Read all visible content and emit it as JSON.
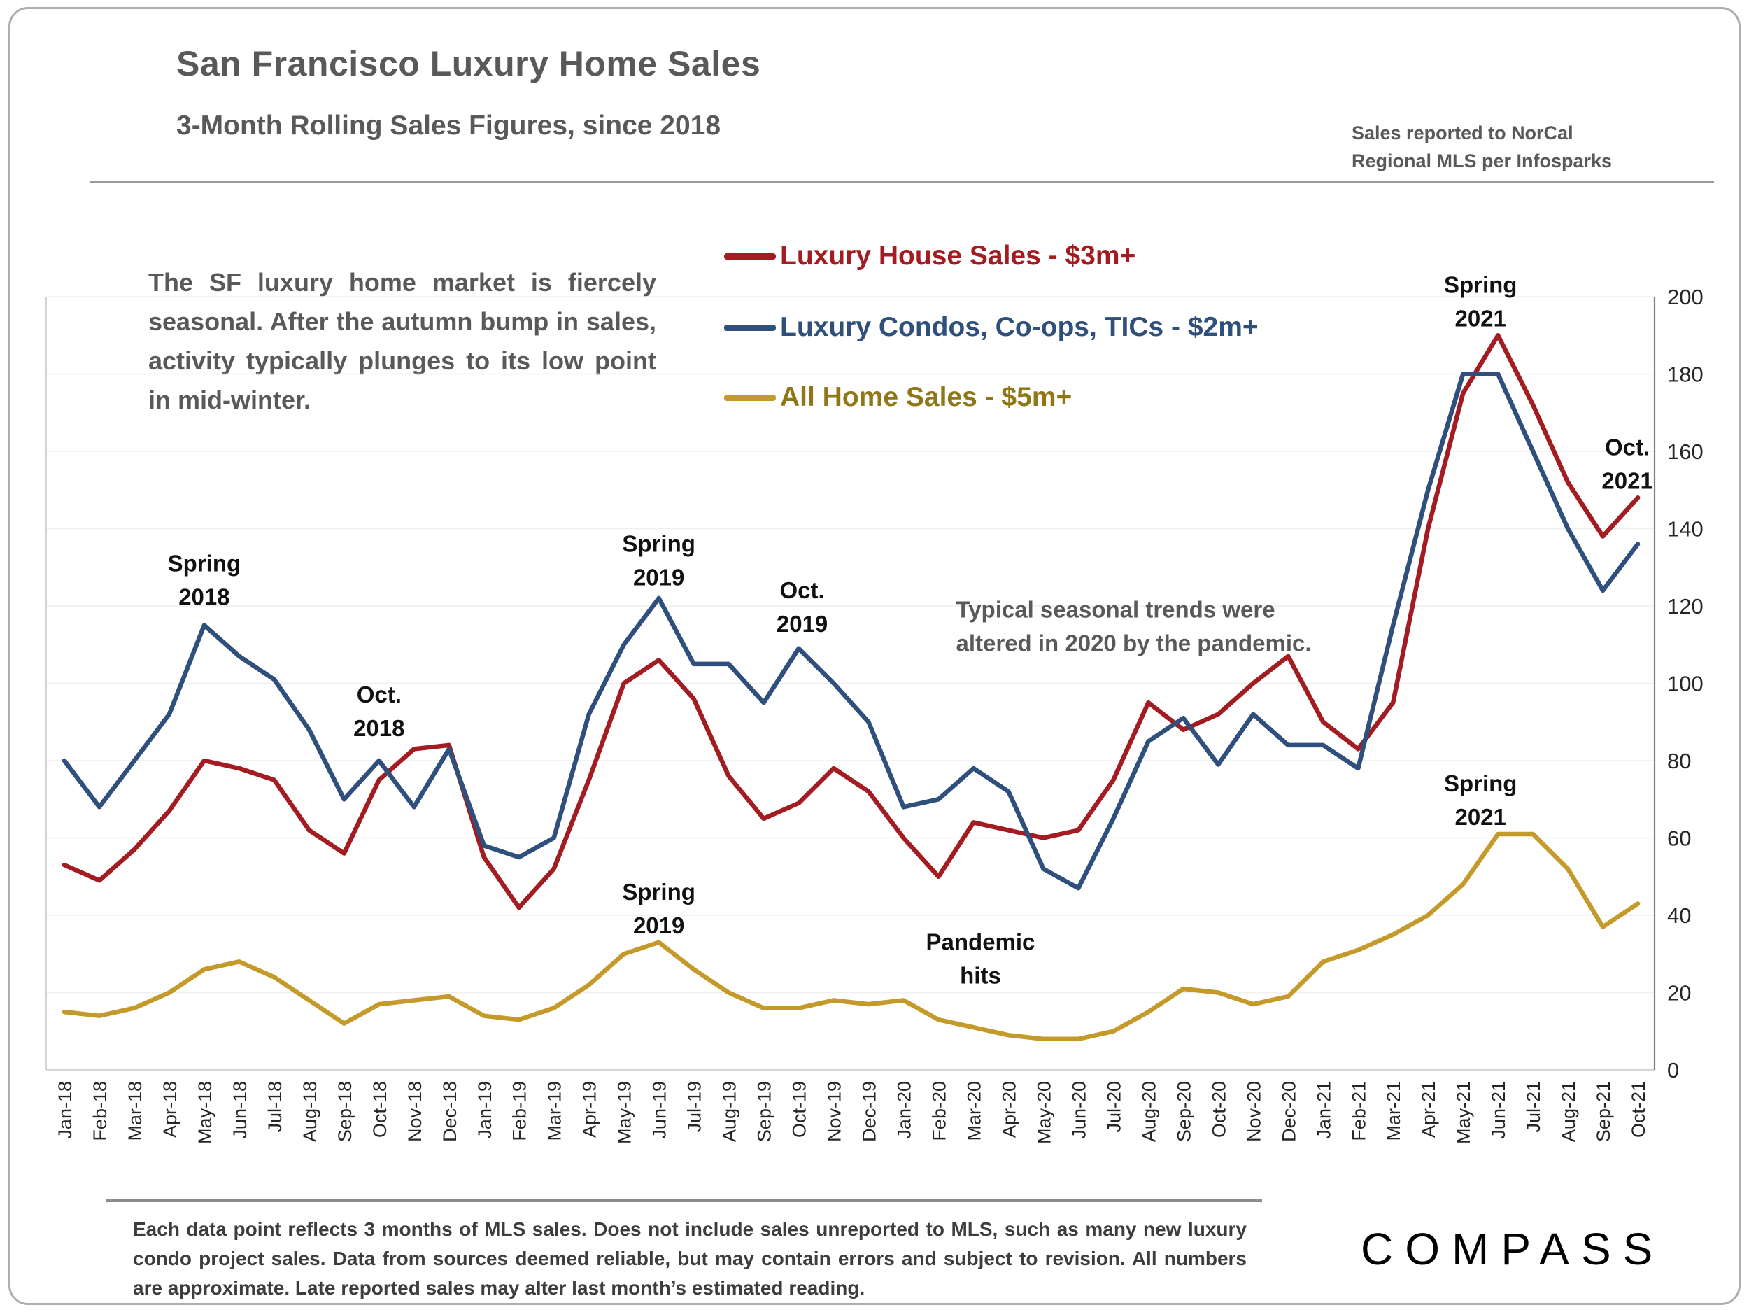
{
  "header": {
    "title": "San Francisco Luxury Home Sales",
    "subtitle": "3-Month Rolling Sales Figures, since 2018",
    "source_note_line1": "Sales reported to NorCal",
    "source_note_line2": "Regional MLS per Infosparks"
  },
  "commentary": "The SF luxury home market is fiercely seasonal. After the autumn bump in sales, activity typically plunges to its low point in mid-winter.",
  "footnote": "Each data point reflects 3 months of MLS sales. Does not include sales unreported to MLS, such as many new luxury condo project sales. Data from sources deemed reliable, but may contain errors and subject to revision. All numbers are approximate. Late reported sales may alter last month’s estimated reading.",
  "logo": {
    "text": "COMPASS"
  },
  "colors": {
    "title_gray": "#595959",
    "annotation_black": "#111111",
    "annotation_gray": "#595959",
    "grid": "#efefef",
    "axis": "#7f7f7f"
  },
  "chart_data": {
    "type": "line",
    "x": [
      "Jan-18",
      "Feb-18",
      "Mar-18",
      "Apr-18",
      "May-18",
      "Jun-18",
      "Jul-18",
      "Aug-18",
      "Sep-18",
      "Oct-18",
      "Nov-18",
      "Dec-18",
      "Jan-19",
      "Feb-19",
      "Mar-19",
      "Apr-19",
      "May-19",
      "Jun-19",
      "Jul-19",
      "Aug-19",
      "Sep-19",
      "Oct-19",
      "Nov-19",
      "Dec-19",
      "Jan-20",
      "Feb-20",
      "Mar-20",
      "Apr-20",
      "May-20",
      "Jun-20",
      "Jul-20",
      "Aug-20",
      "Sep-20",
      "Oct-20",
      "Nov-20",
      "Dec-20",
      "Jan-21",
      "Feb-21",
      "Mar-21",
      "Apr-21",
      "May-21",
      "Jun-21",
      "Jul-21",
      "Aug-21",
      "Sep-21",
      "Oct-21"
    ],
    "series": [
      {
        "name": "Luxury House Sales - $3m+",
        "color": "#a21c21",
        "label_color": "#a21c21",
        "values": [
          53,
          49,
          57,
          67,
          80,
          78,
          75,
          62,
          56,
          75,
          83,
          84,
          55,
          42,
          52,
          75,
          100,
          106,
          96,
          76,
          65,
          69,
          78,
          72,
          60,
          50,
          64,
          62,
          60,
          62,
          75,
          95,
          88,
          92,
          100,
          107,
          90,
          83,
          95,
          140,
          175,
          190,
          172,
          152,
          138,
          148
        ]
      },
      {
        "name": "Luxury Condos, Co-ops, TICs - $2m+",
        "color": "#2f4f7c",
        "label_color": "#2f4f7c",
        "values": [
          80,
          68,
          80,
          92,
          115,
          107,
          101,
          88,
          70,
          80,
          68,
          83,
          58,
          55,
          60,
          92,
          110,
          122,
          105,
          105,
          95,
          109,
          100,
          90,
          68,
          70,
          78,
          72,
          52,
          47,
          65,
          85,
          91,
          79,
          92,
          84,
          84,
          78,
          115,
          150,
          180,
          180,
          160,
          140,
          124,
          136
        ]
      },
      {
        "name": "All Home Sales - $5m+",
        "color": "#c49b2a",
        "label_color": "#8f7616",
        "values": [
          15,
          14,
          16,
          20,
          26,
          28,
          24,
          18,
          12,
          17,
          18,
          19,
          14,
          13,
          16,
          22,
          30,
          33,
          26,
          20,
          16,
          16,
          18,
          17,
          18,
          13,
          11,
          9,
          8,
          8,
          10,
          15,
          21,
          20,
          17,
          19,
          28,
          31,
          35,
          40,
          48,
          61,
          61,
          52,
          37,
          43
        ]
      }
    ],
    "ylim": [
      0,
      200
    ],
    "ytick_step": 20,
    "grid": true,
    "legend_position": "top-center",
    "yaxis_side": "right",
    "annotations": [
      {
        "lines": [
          "Spring",
          "2018"
        ],
        "month": "May-18",
        "offset": 0,
        "value": 129,
        "align": "middle",
        "color": "#111111"
      },
      {
        "lines": [
          "Oct.",
          "2018"
        ],
        "month": "Oct-18",
        "offset": 0,
        "value": 95,
        "align": "middle",
        "color": "#111111"
      },
      {
        "lines": [
          "Spring",
          "2019"
        ],
        "month": "Jun-19",
        "offset": 0,
        "value": 134,
        "align": "middle",
        "color": "#111111"
      },
      {
        "lines": [
          "Oct.",
          "2019"
        ],
        "month": "Oct-19",
        "offset": 0.1,
        "value": 122,
        "align": "middle",
        "color": "#111111"
      },
      {
        "lines": [
          "Typical seasonal trends were",
          "altered in 2020 by the pandemic."
        ],
        "month": "Feb-20",
        "offset": 0.5,
        "value": 117,
        "align": "start",
        "color": "#595959"
      },
      {
        "lines": [
          "Spring",
          "2019"
        ],
        "month": "Jun-19",
        "offset": 0,
        "value": 44,
        "align": "middle",
        "color": "#111111"
      },
      {
        "lines": [
          "Pandemic",
          "hits"
        ],
        "month": "Mar-20",
        "offset": 0.2,
        "value": 31,
        "align": "middle",
        "color": "#111111"
      },
      {
        "lines": [
          "Spring",
          "2021"
        ],
        "month": "Jun-21",
        "offset": -0.5,
        "value": 201,
        "align": "middle",
        "color": "#111111"
      },
      {
        "lines": [
          "Oct.",
          "2021"
        ],
        "month": "Oct-21",
        "offset": -0.3,
        "value": 159,
        "align": "middle",
        "color": "#111111"
      },
      {
        "lines": [
          "Spring",
          "2021"
        ],
        "month": "Jun-21",
        "offset": -0.5,
        "value": 72,
        "align": "middle",
        "color": "#111111"
      }
    ]
  }
}
